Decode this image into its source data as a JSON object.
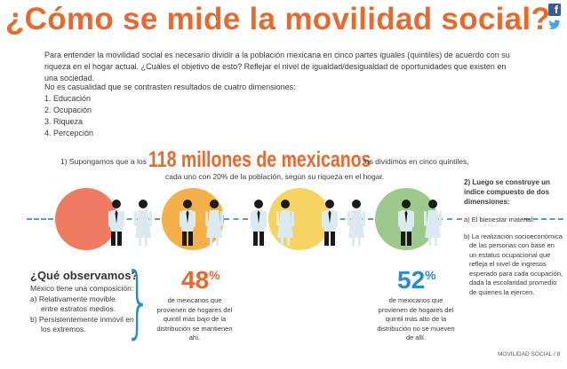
{
  "title": "¿Cómo se mide la movilidad social?",
  "social": {
    "facebook": "f-letter-icon",
    "twitter": "bird-icon"
  },
  "intro": "Para entender la movilidad social es necesario dividir a la población mexicana en cinco partes iguales (quintiles) de acuerdo con su riqueza en el hogar actual. ¿Cuáles el objetivo de esto? Reflejar el nivel de igualdad/desigualdad de oportunidades que existen en una sociedad.",
  "dimensions": {
    "lead": "No es casualidad que se contrasten resultados de cuatro dimensiones:",
    "items": [
      "1. Educación",
      "2. Ocupación",
      "3. Riqueza",
      "4. Percepción"
    ]
  },
  "population": {
    "lead": "1) Supongamos que a los",
    "big": "118 millones de mexicanos",
    "tail": "los dividimos en cinco quintiles,",
    "line2": "cada uno con 20% de la población, según su riqueza en el hogar."
  },
  "colors": {
    "accent": "#e8692c",
    "blue": "#2e8bc7",
    "circles": [
      "#ef7b61",
      "#f4b14a",
      "#f5d463",
      "#9dc98c",
      "#8fcbd8"
    ]
  },
  "right": {
    "heading": "2) Luego se construye un índice compuesto de dos dimensiones:",
    "a": "a) El bienestar material.",
    "b": "b) La realización socioeconómica de las personas con base en un estatus ocupacional que refleja el nivel de ingresos esperado para cada ocupación, dada la escolaridad promedio de quienes la ejercen."
  },
  "observe": {
    "heading": "¿Qué observamos?",
    "lines": [
      "México tiene una composición:",
      "a) Relativamente movible",
      "entre estratos medios.",
      "b) Persistentemente inmóvil en",
      "los extremos."
    ]
  },
  "stat1": {
    "value": "48",
    "unit": "%",
    "desc": "de mexicanos que provienen de hogares del quintil más bajo de la distribución se mantienen ahí."
  },
  "stat2": {
    "value": "52",
    "unit": "%",
    "desc": "de mexicanos que provienen de hogares del quintil más alto de la distribución no se mueven de allí."
  },
  "footer": "MOVILIDAD SOCIAL / 8"
}
